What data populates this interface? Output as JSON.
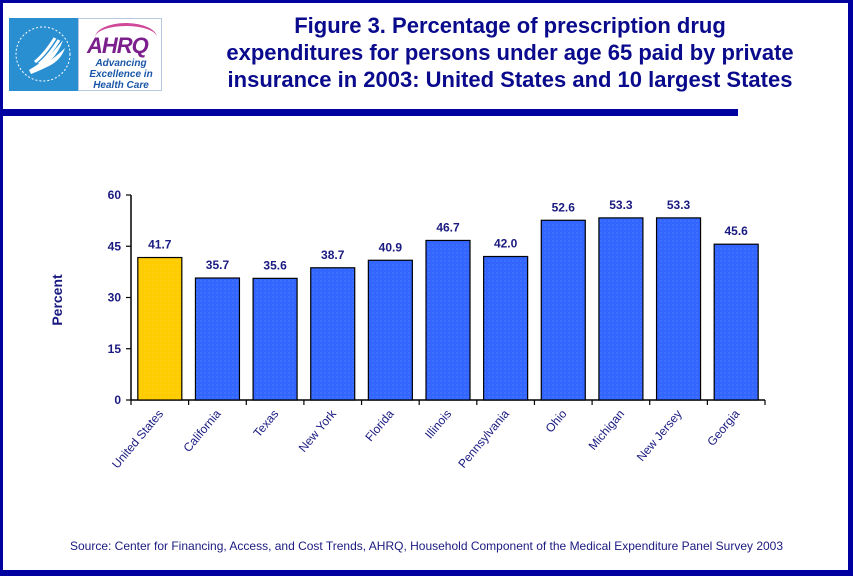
{
  "header": {
    "logo_hhs": "hhs-eagle-logo",
    "logo_ahrq_word": "AHRQ",
    "logo_ahrq_tagline": [
      "Advancing",
      "Excellence in",
      "Health Care"
    ],
    "title_lines": [
      "Figure 3. Percentage of prescription drug",
      "expenditures for persons under age 65 paid by private",
      "insurance in 2003: United States and 10 largest States"
    ]
  },
  "colors": {
    "frame": "#0000A0",
    "highlight_bar": "#FFCC00",
    "bar": "#3366FF",
    "text": "#1A1A80"
  },
  "chart_data": {
    "type": "bar",
    "title": "Figure 3. Percentage of prescription drug expenditures for persons under age 65 paid by private insurance in 2003: United States and 10 largest States",
    "xlabel": "",
    "ylabel": "Percent",
    "ylim": [
      0,
      60
    ],
    "yticks": [
      0,
      15,
      30,
      45,
      60
    ],
    "grid": false,
    "categories": [
      "United States",
      "California",
      "Texas",
      "New York",
      "Florida",
      "Illinois",
      "Pennsylvania",
      "Ohio",
      "Michigan",
      "New Jersey",
      "Georgia"
    ],
    "values": [
      41.7,
      35.7,
      35.6,
      38.7,
      40.9,
      46.7,
      42.0,
      52.6,
      53.3,
      53.3,
      45.6
    ],
    "value_labels": [
      "41.7",
      "35.7",
      "35.6",
      "38.7",
      "40.9",
      "46.7",
      "42.0",
      "52.6",
      "53.3",
      "53.3",
      "45.6"
    ],
    "highlight_index": 0
  },
  "footer": {
    "source": "Source: Center for Financing, Access, and Cost Trends, AHRQ, Household Component of the Medical Expenditure Panel Survey 2003"
  }
}
